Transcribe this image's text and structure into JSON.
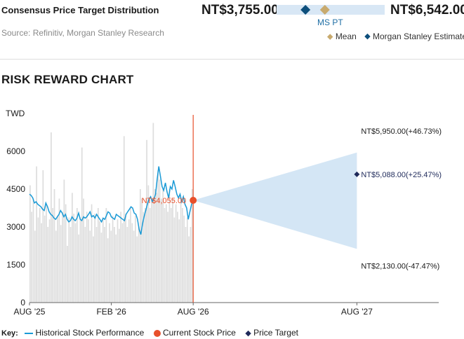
{
  "consensus": {
    "title": "Consensus Price Target Distribution",
    "source": "Source: Refinitiv, Morgan Stanley Research",
    "low": "NT$3,755.00",
    "high": "NT$6,542.00",
    "ms_pt_label": "MS PT",
    "legend_mean": "Mean",
    "legend_ms": "Morgan Stanley Estimates",
    "range": [
      3755,
      6542
    ],
    "mean_value": 5000,
    "ms_pt_value": 4500,
    "colors": {
      "bar": "#d8e7f5",
      "mean": "#c8aa6e",
      "ms": "#0d4f7c"
    }
  },
  "section_title": "RISK REWARD CHART",
  "key": {
    "label": "Key:",
    "historical": "Historical Stock Performance",
    "current": "Current Stock Price",
    "target": "Price Target"
  },
  "chart_data": {
    "type": "line",
    "ylabel": "TWD",
    "ylim": [
      0,
      7500
    ],
    "yticks": [
      0,
      1500,
      3000,
      4500,
      6000
    ],
    "ytick_labels": [
      "0",
      "1500",
      "3000",
      "4500",
      "6000"
    ],
    "xlim": [
      "2025-08",
      "2028-02"
    ],
    "xticks": [
      "2025-08",
      "2026-02",
      "2026-08",
      "2027-08"
    ],
    "xtick_labels": [
      "AUG '25",
      "FEB '26",
      "AUG '26",
      "AUG '27"
    ],
    "grid": false,
    "series": [
      {
        "name": "Historical Stock Performance",
        "color": "#1a9ad6",
        "values": [
          4300,
          4250,
          4150,
          3950,
          4000,
          3900,
          3850,
          3800,
          3700,
          3650,
          3950,
          3800,
          3600,
          3500,
          3450,
          3350,
          3300,
          3400,
          3500,
          3650,
          3550,
          3400,
          3500,
          3300,
          3200,
          3250,
          3400,
          3300,
          3250,
          3350,
          3550,
          3300,
          3250,
          3400,
          3350,
          3400,
          3500,
          3600,
          3400,
          3450,
          3350,
          3500,
          3400,
          3300,
          3200,
          3350,
          3300,
          3450,
          3600,
          3550,
          3400,
          3350,
          3300,
          3500,
          3450,
          3400,
          3350,
          3300,
          3250,
          3500,
          3600,
          3700,
          3800,
          3750,
          3550,
          3500,
          3300,
          2900,
          2700,
          3100,
          3400,
          3650,
          3900,
          4100,
          4200,
          4000,
          4100,
          4300,
          4900,
          5400,
          5000,
          4600,
          4450,
          4750,
          4400,
          4150,
          4600,
          4500,
          4850,
          4600,
          4300,
          4150,
          4300,
          4000,
          4200,
          3900,
          3750,
          3300,
          3600,
          3900,
          4055
        ]
      },
      {
        "name": "Volume",
        "color": "#dddddd",
        "values": [
          0.62,
          0.48,
          0.55,
          0.38,
          0.72,
          0.45,
          0.5,
          0.42,
          0.7,
          0.46,
          0.52,
          0.4,
          0.44,
          0.9,
          0.5,
          0.6,
          0.38,
          0.46,
          0.55,
          0.41,
          0.48,
          0.65,
          0.52,
          0.3,
          0.45,
          0.4,
          0.58,
          0.47,
          0.42,
          0.5,
          0.36,
          0.45,
          0.82,
          0.55,
          0.4,
          0.48,
          0.44,
          0.38,
          0.52,
          0.35,
          0.47,
          0.4,
          0.5,
          0.43,
          0.37,
          0.45,
          0.4,
          0.5,
          0.34,
          0.42,
          0.38,
          0.46,
          0.4,
          0.36,
          0.44,
          0.39,
          0.48,
          0.42,
          0.88,
          0.47,
          0.4,
          0.44,
          0.5,
          0.42,
          0.38,
          0.46,
          0.35,
          0.4,
          0.6,
          0.55,
          0.48,
          0.5,
          0.86,
          0.62,
          0.5,
          0.55,
          0.95,
          0.6,
          0.58,
          0.7,
          0.65,
          0.55,
          0.6,
          0.5,
          0.52,
          0.48,
          0.6,
          0.5,
          0.55,
          0.45,
          0.52,
          0.48,
          0.44,
          0.55,
          0.5,
          0.46,
          0.4,
          0.45,
          0.35,
          0.4,
          0.6
        ]
      }
    ],
    "current_price": {
      "label": "NT$4,055.00",
      "value": 4055,
      "date": "2026-08",
      "color": "#e8502b"
    },
    "targets": [
      {
        "label": "NT$5,950.00(+46.73%)",
        "value": 5950,
        "case": "bull"
      },
      {
        "label": "NT$5,088.00(+25.47%)",
        "value": 5088,
        "case": "base",
        "color": "#1f2a5a"
      },
      {
        "label": "NT$2,130.00(-47.47%)",
        "value": 2130,
        "case": "bear"
      }
    ],
    "target_date": "2027-08",
    "cone_color": "#d4e6f5"
  }
}
